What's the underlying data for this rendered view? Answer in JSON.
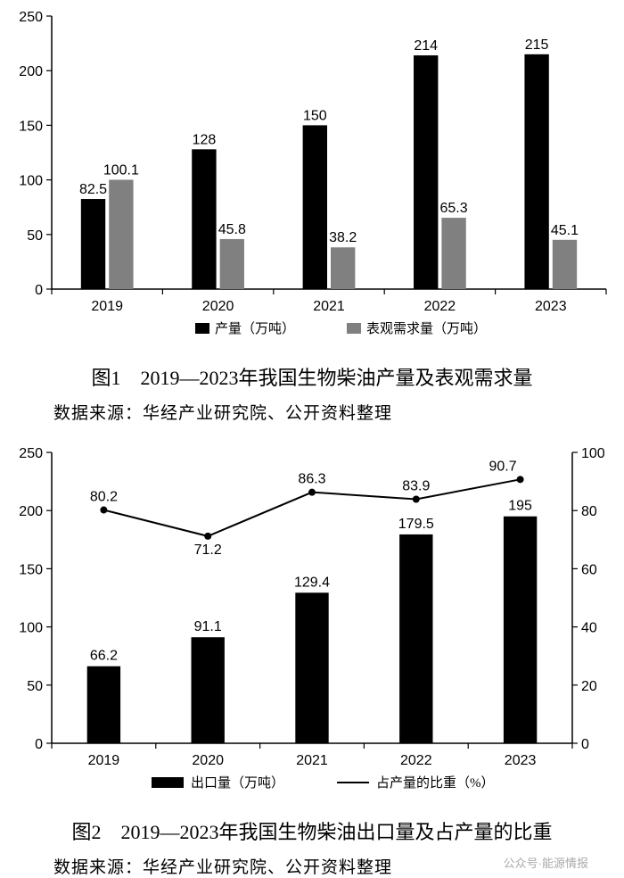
{
  "chart1": {
    "type": "grouped-bar",
    "categories": [
      "2019",
      "2020",
      "2021",
      "2022",
      "2023"
    ],
    "series": [
      {
        "name": "产量（万吨）",
        "color": "#000000",
        "values": [
          82.5,
          128,
          150,
          214,
          215
        ]
      },
      {
        "name": "表观需求量（万吨）",
        "color": "#808080",
        "values": [
          100.1,
          45.8,
          38.2,
          65.3,
          45.1
        ]
      }
    ],
    "ylim": [
      0,
      250
    ],
    "ytick_step": 50,
    "label_fontsize": 16,
    "tick_fontsize": 16,
    "legend_fontsize": 15,
    "background_color": "#ffffff",
    "axis_color": "#000000",
    "line_width": 1.5,
    "bar_width_ratio": 0.22,
    "caption": "图1　2019—2023年我国生物柴油产量及表观需求量",
    "source": "数据来源：华经产业研究院、公开资料整理"
  },
  "chart2": {
    "type": "bar-line-combo",
    "categories": [
      "2019",
      "2020",
      "2021",
      "2022",
      "2023"
    ],
    "bar_series": {
      "name": "出口量（万吨）",
      "color": "#000000",
      "values": [
        66.2,
        91.1,
        129.4,
        179.5,
        195
      ]
    },
    "line_series": {
      "name": "占产量的比重（%）",
      "color": "#000000",
      "values": [
        80.2,
        71.2,
        86.3,
        83.9,
        90.7
      ],
      "line_width": 2,
      "marker_size": 4
    },
    "ylim_left": [
      0,
      250
    ],
    "ytick_step_left": 50,
    "ylim_right": [
      0,
      100
    ],
    "ytick_step_right": 20,
    "label_fontsize": 16,
    "tick_fontsize": 16,
    "legend_fontsize": 15,
    "background_color": "#ffffff",
    "axis_color": "#000000",
    "line_width": 1.5,
    "bar_width_ratio": 0.32,
    "caption": "图2　2019—2023年我国生物柴油出口量及占产量的比重",
    "source": "数据来源：华经产业研究院、公开资料整理"
  },
  "watermark": "公众号·能源情报"
}
